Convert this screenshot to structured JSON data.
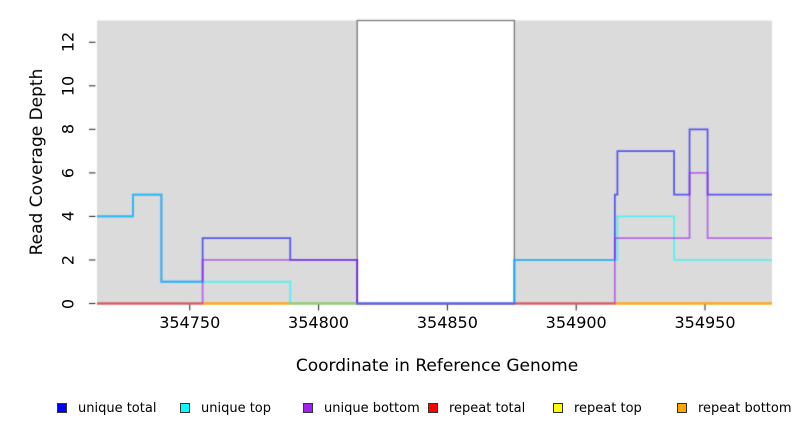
{
  "chart_data": {
    "type": "line",
    "step": "post",
    "title": "",
    "xlabel": "Coordinate in Reference Genome",
    "ylabel": "Read Coverage Depth",
    "xlim": [
      354714,
      354976
    ],
    "ylim": [
      0,
      13
    ],
    "x_ticks": [
      "354750",
      "354800",
      "354850",
      "354900",
      "354950"
    ],
    "x_tick_values": [
      354750,
      354800,
      354850,
      354900,
      354950
    ],
    "y_ticks": [
      "0",
      "2",
      "4",
      "6",
      "8",
      "10",
      "12"
    ],
    "y_tick_values": [
      0,
      2,
      4,
      6,
      8,
      10,
      12
    ],
    "grid": false,
    "legend_position": "bottom",
    "plot_background": "#DBDBDB",
    "figure_background": "#FFFFFF",
    "tick_color": "#333333",
    "line_alpha": 0.6,
    "line_width": 1.8,
    "highlight_region": {
      "x0": 354815,
      "x1": 354876,
      "fill": "#FFFFFF",
      "border": "#808080"
    },
    "series": [
      {
        "name": "repeat total",
        "color": "#FF0000",
        "layer": "below-highlight",
        "steps": [
          [
            354714,
            0
          ]
        ]
      },
      {
        "name": "repeat top",
        "color": "#FFFF00",
        "layer": "below-highlight",
        "steps": [
          [
            354714,
            0
          ]
        ]
      },
      {
        "name": "repeat bottom",
        "color": "#FFA500",
        "layer": "below-highlight",
        "steps": [
          [
            354714,
            0
          ]
        ]
      },
      {
        "name": "unique total",
        "color": "#0000FF",
        "layer": "above-highlight",
        "steps": [
          [
            354714,
            4
          ],
          [
            354728,
            5
          ],
          [
            354739,
            1
          ],
          [
            354755,
            3
          ],
          [
            354789,
            2
          ],
          [
            354815,
            0
          ],
          [
            354876,
            2
          ],
          [
            354915,
            5
          ],
          [
            354916,
            7
          ],
          [
            354938,
            5
          ],
          [
            354944,
            8
          ],
          [
            354951,
            5
          ]
        ]
      },
      {
        "name": "unique top",
        "color": "#00FFFF",
        "layer": "above-highlight",
        "steps": [
          [
            354714,
            4
          ],
          [
            354728,
            5
          ],
          [
            354739,
            1
          ],
          [
            354789,
            0
          ],
          [
            354876,
            2
          ],
          [
            354916,
            4
          ],
          [
            354938,
            2
          ]
        ]
      },
      {
        "name": "unique bottom",
        "color": "#A020F0",
        "layer": "above-highlight",
        "steps": [
          [
            354714,
            0
          ],
          [
            354755,
            2
          ],
          [
            354815,
            0
          ],
          [
            354915,
            3
          ],
          [
            354944,
            6
          ],
          [
            354951,
            3
          ]
        ]
      }
    ]
  },
  "legend": {
    "items": [
      {
        "label": "unique total",
        "color": "#0000FF"
      },
      {
        "label": "unique top",
        "color": "#00FFFF"
      },
      {
        "label": "unique bottom",
        "color": "#A020F0"
      },
      {
        "label": "repeat total",
        "color": "#FF0000"
      },
      {
        "label": "repeat top",
        "color": "#FFFF00"
      },
      {
        "label": "repeat bottom",
        "color": "#FFA500"
      }
    ]
  }
}
